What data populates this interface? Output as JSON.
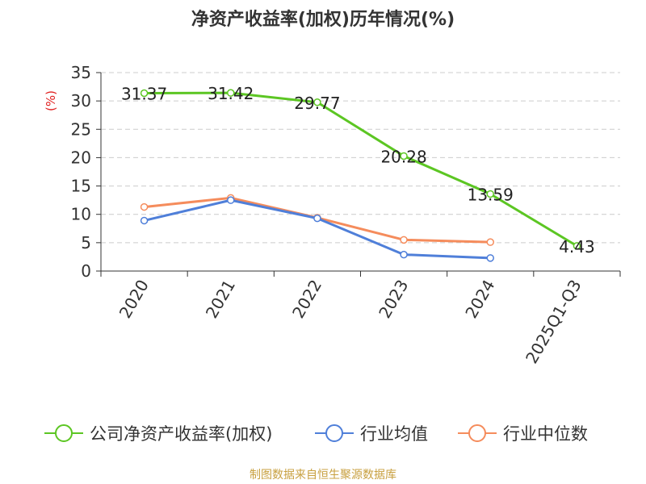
{
  "chart_data": {
    "type": "line",
    "title": "净资产收益率(加权)历年情况(%)",
    "ylabel": "(%)",
    "xlabel": "",
    "categories": [
      "2020",
      "2021",
      "2022",
      "2023",
      "2024",
      "2025Q1-Q3"
    ],
    "ylim": [
      0,
      35
    ],
    "yticks": [
      0,
      5,
      10,
      15,
      20,
      25,
      30,
      35
    ],
    "grid": true,
    "legend_position": "bottom",
    "series": [
      {
        "name": "公司净资产收益率(加权)",
        "color": "#5cc623",
        "values": [
          31.37,
          31.42,
          29.77,
          20.28,
          13.59,
          4.43
        ],
        "labels": [
          "31.37",
          "31.42",
          "29.77",
          "20.28",
          "13.59",
          "4.43"
        ]
      },
      {
        "name": "行业均值",
        "color": "#4f7fd9",
        "values": [
          8.9,
          12.5,
          9.3,
          2.9,
          2.3,
          null
        ]
      },
      {
        "name": "行业中位数",
        "color": "#f58c5c",
        "values": [
          11.3,
          12.9,
          9.4,
          5.5,
          5.1,
          null
        ]
      }
    ]
  },
  "source": "制图数据来自恒生聚源数据库"
}
